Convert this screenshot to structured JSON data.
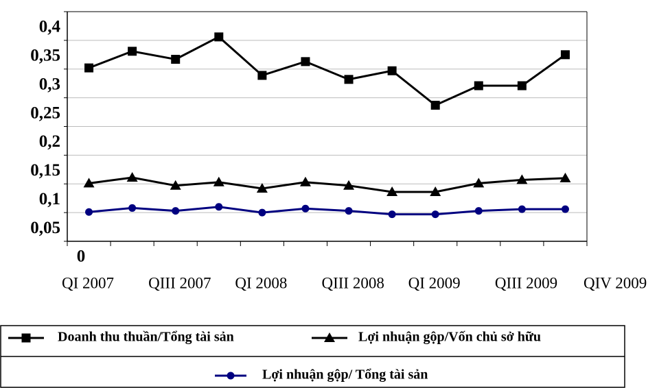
{
  "chart_data": {
    "type": "line",
    "categories": [
      "QI 2007",
      null,
      "QIII 2007",
      null,
      "QI 2008",
      null,
      "QIII 2008",
      null,
      "QI 2009",
      null,
      "QIII 2009",
      "QIV 2009"
    ],
    "series": [
      {
        "name": "Doanh thu thuần/Tổng tài sản",
        "color": "#000000",
        "marker": "square",
        "values": [
          0.302,
          0.331,
          0.317,
          0.356,
          0.289,
          0.313,
          0.282,
          0.297,
          0.237,
          0.271,
          0.271,
          0.325
        ]
      },
      {
        "name": "Lợi nhuận gộp/Vốn chủ sở hữu",
        "color": "#000000",
        "marker": "triangle",
        "values": [
          0.101,
          0.111,
          0.097,
          0.103,
          0.092,
          0.103,
          0.097,
          0.086,
          0.086,
          0.101,
          0.107,
          0.11
        ]
      },
      {
        "name": "Lợi nhuận gộp/ Tổng tài sản",
        "color": "#000080",
        "marker": "circle",
        "values": [
          0.051,
          0.058,
          0.053,
          0.06,
          0.05,
          0.057,
          0.053,
          0.047,
          0.047,
          0.053,
          0.056,
          0.056
        ]
      }
    ],
    "ylim": [
      0,
      0.4
    ],
    "yticks": [
      0,
      {
        "value": 0.05,
        "label": "0,05"
      },
      {
        "value": 0.1,
        "label": "0,1"
      },
      {
        "value": 0.15,
        "label": "0,15"
      },
      {
        "value": 0.2,
        "label": "0,2"
      },
      {
        "value": 0.25,
        "label": "0,25"
      },
      {
        "value": 0.3,
        "label": "0,3"
      },
      {
        "value": 0.35,
        "label": "0,35"
      },
      {
        "value": 0.4,
        "label": "0,4"
      }
    ],
    "grid": true
  }
}
